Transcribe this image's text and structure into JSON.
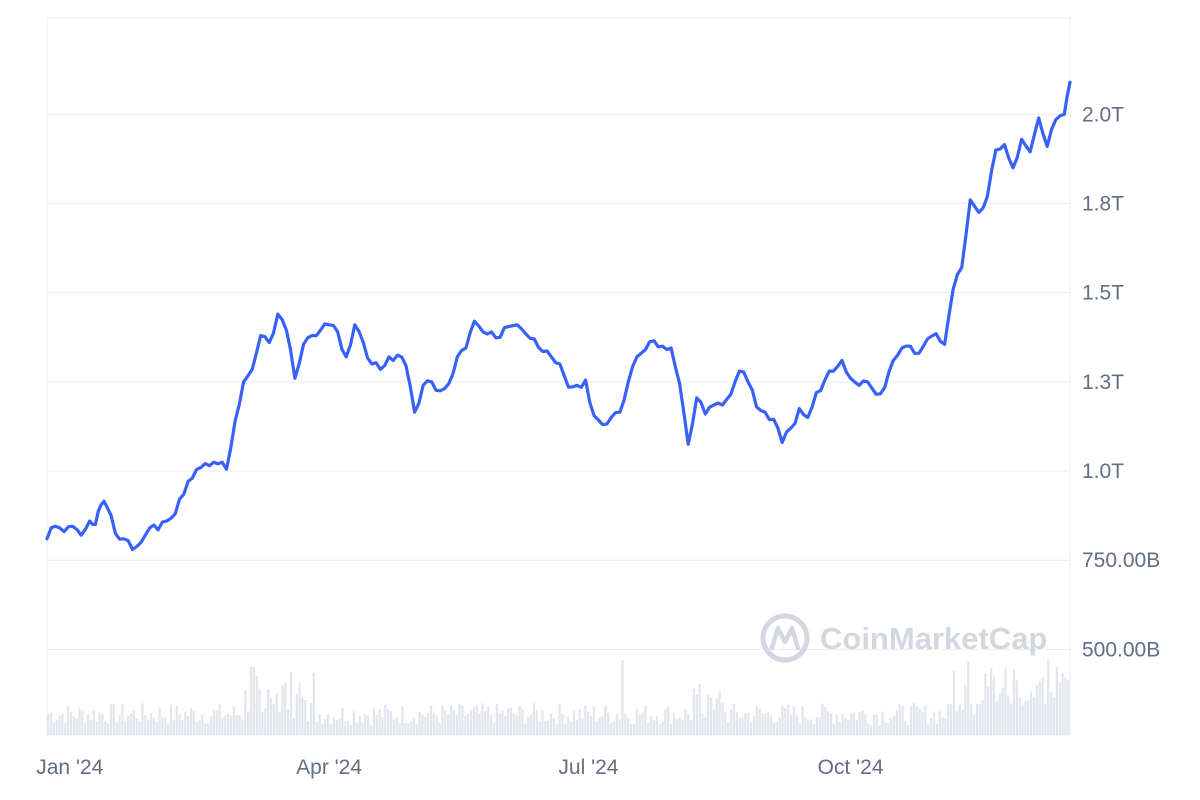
{
  "chart_data": {
    "type": "line",
    "title": "",
    "xlabel": "",
    "ylabel": "",
    "x_ticks": [
      "Jan '24",
      "Apr '24",
      "Jul '24",
      "Oct '24"
    ],
    "y_ticks": [
      {
        "value": 500,
        "label": "500.00B"
      },
      {
        "value": 750,
        "label": "750.00B"
      },
      {
        "value": 1000,
        "label": "1.0T"
      },
      {
        "value": 1250,
        "label": "1.3T"
      },
      {
        "value": 1500,
        "label": "1.5T"
      },
      {
        "value": 1750,
        "label": "1.8T"
      },
      {
        "value": 2000,
        "label": "2.0T"
      }
    ],
    "y_unit": "billion USD",
    "ylim": [
      260,
      2270
    ],
    "grid": true,
    "series": [
      {
        "color": "#3861fb",
        "points": [
          [
            "2023-12-24",
            810
          ],
          [
            "2023-12-27",
            845
          ],
          [
            "2023-12-30",
            830
          ],
          [
            "2024-01-02",
            845
          ],
          [
            "2024-01-05",
            820
          ],
          [
            "2024-01-08",
            860
          ],
          [
            "2024-01-10",
            850
          ],
          [
            "2024-01-12",
            905
          ],
          [
            "2024-01-14",
            900
          ],
          [
            "2024-01-17",
            825
          ],
          [
            "2024-01-20",
            810
          ],
          [
            "2024-01-23",
            780
          ],
          [
            "2024-01-26",
            800
          ],
          [
            "2024-01-29",
            840
          ],
          [
            "2024-02-01",
            835
          ],
          [
            "2024-02-04",
            860
          ],
          [
            "2024-02-07",
            880
          ],
          [
            "2024-02-10",
            935
          ],
          [
            "2024-02-13",
            980
          ],
          [
            "2024-02-16",
            1010
          ],
          [
            "2024-02-19",
            1015
          ],
          [
            "2024-02-22",
            1020
          ],
          [
            "2024-02-25",
            1005
          ],
          [
            "2024-02-28",
            1140
          ],
          [
            "2024-03-02",
            1250
          ],
          [
            "2024-03-05",
            1285
          ],
          [
            "2024-03-08",
            1380
          ],
          [
            "2024-03-11",
            1360
          ],
          [
            "2024-03-14",
            1440
          ],
          [
            "2024-03-17",
            1395
          ],
          [
            "2024-03-20",
            1260
          ],
          [
            "2024-03-23",
            1355
          ],
          [
            "2024-03-26",
            1380
          ],
          [
            "2024-03-29",
            1395
          ],
          [
            "2024-04-01",
            1410
          ],
          [
            "2024-04-04",
            1390
          ],
          [
            "2024-04-07",
            1320
          ],
          [
            "2024-04-10",
            1410
          ],
          [
            "2024-04-13",
            1360
          ],
          [
            "2024-04-16",
            1300
          ],
          [
            "2024-04-19",
            1285
          ],
          [
            "2024-04-22",
            1320
          ],
          [
            "2024-04-25",
            1325
          ],
          [
            "2024-04-28",
            1295
          ],
          [
            "2024-05-01",
            1165
          ],
          [
            "2024-05-04",
            1240
          ],
          [
            "2024-05-07",
            1250
          ],
          [
            "2024-05-10",
            1225
          ],
          [
            "2024-05-13",
            1245
          ],
          [
            "2024-05-16",
            1320
          ],
          [
            "2024-05-19",
            1345
          ],
          [
            "2024-05-22",
            1420
          ],
          [
            "2024-05-25",
            1390
          ],
          [
            "2024-05-28",
            1390
          ],
          [
            "2024-05-31",
            1375
          ],
          [
            "2024-06-03",
            1405
          ],
          [
            "2024-06-06",
            1410
          ],
          [
            "2024-06-09",
            1385
          ],
          [
            "2024-06-12",
            1370
          ],
          [
            "2024-06-15",
            1335
          ],
          [
            "2024-06-18",
            1320
          ],
          [
            "2024-06-21",
            1300
          ],
          [
            "2024-06-24",
            1235
          ],
          [
            "2024-06-27",
            1240
          ],
          [
            "2024-06-30",
            1255
          ],
          [
            "2024-07-03",
            1155
          ],
          [
            "2024-07-06",
            1130
          ],
          [
            "2024-07-09",
            1150
          ],
          [
            "2024-07-12",
            1165
          ],
          [
            "2024-07-15",
            1250
          ],
          [
            "2024-07-18",
            1320
          ],
          [
            "2024-07-21",
            1340
          ],
          [
            "2024-07-24",
            1365
          ],
          [
            "2024-07-27",
            1350
          ],
          [
            "2024-07-30",
            1345
          ],
          [
            "2024-08-02",
            1245
          ],
          [
            "2024-08-05",
            1075
          ],
          [
            "2024-08-08",
            1205
          ],
          [
            "2024-08-11",
            1160
          ],
          [
            "2024-08-14",
            1185
          ],
          [
            "2024-08-17",
            1185
          ],
          [
            "2024-08-20",
            1215
          ],
          [
            "2024-08-23",
            1280
          ],
          [
            "2024-08-26",
            1250
          ],
          [
            "2024-08-29",
            1180
          ],
          [
            "2024-09-01",
            1165
          ],
          [
            "2024-09-04",
            1145
          ],
          [
            "2024-09-07",
            1080
          ],
          [
            "2024-09-10",
            1120
          ],
          [
            "2024-09-13",
            1175
          ],
          [
            "2024-09-16",
            1150
          ],
          [
            "2024-09-19",
            1220
          ],
          [
            "2024-09-22",
            1255
          ],
          [
            "2024-09-25",
            1280
          ],
          [
            "2024-09-28",
            1310
          ],
          [
            "2024-10-01",
            1260
          ],
          [
            "2024-10-04",
            1240
          ],
          [
            "2024-10-07",
            1250
          ],
          [
            "2024-10-10",
            1215
          ],
          [
            "2024-10-13",
            1235
          ],
          [
            "2024-10-16",
            1310
          ],
          [
            "2024-10-19",
            1345
          ],
          [
            "2024-10-22",
            1350
          ],
          [
            "2024-10-25",
            1330
          ],
          [
            "2024-10-28",
            1370
          ],
          [
            "2024-10-31",
            1385
          ],
          [
            "2024-11-03",
            1355
          ],
          [
            "2024-11-06",
            1510
          ],
          [
            "2024-11-09",
            1570
          ],
          [
            "2024-11-12",
            1760
          ],
          [
            "2024-11-15",
            1725
          ],
          [
            "2024-11-18",
            1770
          ],
          [
            "2024-11-21",
            1900
          ],
          [
            "2024-11-24",
            1915
          ],
          [
            "2024-11-27",
            1850
          ],
          [
            "2024-11-30",
            1930
          ],
          [
            "2024-12-03",
            1895
          ],
          [
            "2024-12-06",
            1990
          ],
          [
            "2024-12-09",
            1910
          ],
          [
            "2024-12-12",
            1985
          ],
          [
            "2024-12-15",
            2000
          ],
          [
            "2024-12-17",
            2090
          ]
        ]
      }
    ],
    "volume_bars": true
  },
  "watermark": {
    "text": "CoinMarketCap",
    "color": "#d3d7e0"
  },
  "colors": {
    "line": "#3861fb",
    "grid": "#e9ecf1",
    "volume": "#e3e6ec",
    "tick_text": "#616e85"
  }
}
